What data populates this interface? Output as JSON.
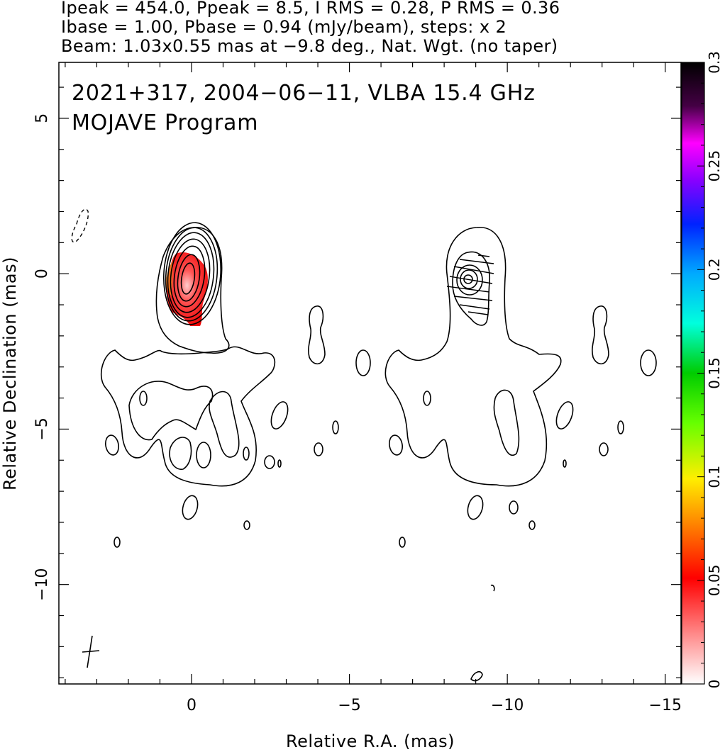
{
  "header": {
    "line1": "Ipeak = 454.0, Ppeak = 8.5, I RMS = 0.28, P RMS = 0.36",
    "line2": "Ibase = 1.00, Pbase = 0.94 (mJy/beam), steps: x 2",
    "line3": "Beam: 1.03x0.55 mas at −9.8 deg., Nat. Wgt. (no taper)"
  },
  "chart_data": {
    "type": "heatmap",
    "title": "2021+317, 2004−06−11, VLBA 15.4 GHz",
    "subtitle": "MOJAVE Program",
    "xlabel": "Relative R.A. (mas)",
    "ylabel": "Relative Declination (mas)",
    "xlim": [
      4.2,
      -15.5
    ],
    "ylim": [
      -13.2,
      6.8
    ],
    "x_ticks": [
      0,
      -5,
      -10,
      -15
    ],
    "x_tick_labels": [
      "0",
      "−5",
      "−10",
      "−15"
    ],
    "y_ticks": [
      5,
      0,
      -5,
      -10
    ],
    "y_tick_labels": [
      "5",
      "0",
      "−5",
      "−10"
    ],
    "colorbar": {
      "ticks": [
        0,
        0.05,
        0.1,
        0.15,
        0.2,
        0.25,
        0.3
      ],
      "tick_labels": [
        "0",
        "0.05",
        "0.1",
        "0.15",
        "0.2",
        "0.25",
        "0.3"
      ],
      "range": [
        0,
        0.3
      ]
    },
    "source": "2021+317",
    "epoch": "2004-06-11",
    "frequency_ghz": 15.4,
    "Ipeak_mJy_per_beam": 454.0,
    "Ppeak_mJy_per_beam": 8.5,
    "I_rms": 0.28,
    "P_rms": 0.36,
    "Ibase": 1.0,
    "Pbase": 0.94,
    "contour_step_factor": 2,
    "beam": {
      "major_mas": 1.03,
      "minor_mas": 0.55,
      "pa_deg": -9.8
    },
    "weighting": "Nat. Wgt. (no taper)",
    "colormap": [
      "#ffffff",
      "#ff8a8a",
      "#ff0000",
      "#ff8800",
      "#ffee00",
      "#66ff00",
      "#00cc00",
      "#00ffdd",
      "#00aaff",
      "#0022ff",
      "#8800ff",
      "#ff00ff",
      "#440044",
      "#000000"
    ]
  }
}
